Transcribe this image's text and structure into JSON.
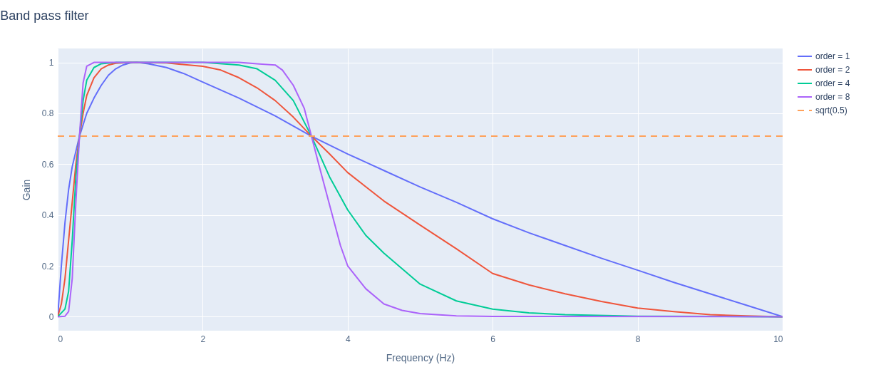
{
  "chart_data": {
    "type": "line",
    "title": "Band pass filter",
    "xlabel": "Frequency (Hz)",
    "ylabel": "Gain",
    "xlim": [
      0,
      10
    ],
    "xticks": [
      0,
      2,
      4,
      6,
      8,
      10
    ],
    "ylim": [
      -0.055,
      1.055
    ],
    "yticks": [
      0,
      0.2,
      0.4,
      0.6,
      0.8,
      1
    ],
    "grid": true,
    "legend": "top right",
    "series": [
      {
        "name": "order = 1",
        "color": "#636efa",
        "x": [
          0,
          0.05,
          0.1,
          0.15,
          0.2,
          0.3,
          0.4,
          0.5,
          0.6,
          0.7,
          0.8,
          0.9,
          1.0,
          1.1,
          1.25,
          1.5,
          1.75,
          2,
          2.5,
          3,
          3.5,
          4,
          4.5,
          5,
          5.5,
          6,
          6.5,
          7,
          7.5,
          8,
          8.5,
          9,
          9.5,
          10
        ],
        "values": [
          0,
          0.2,
          0.37,
          0.5,
          0.59,
          0.71,
          0.8,
          0.86,
          0.91,
          0.95,
          0.975,
          0.99,
          0.998,
          1.0,
          0.995,
          0.98,
          0.955,
          0.923,
          0.86,
          0.79,
          0.71,
          0.64,
          0.575,
          0.51,
          0.45,
          0.385,
          0.33,
          0.28,
          0.23,
          0.183,
          0.135,
          0.09,
          0.045,
          0
        ]
      },
      {
        "name": "order = 2",
        "color": "#ef553b",
        "x": [
          0,
          0.05,
          0.1,
          0.15,
          0.2,
          0.25,
          0.3,
          0.35,
          0.4,
          0.5,
          0.6,
          0.7,
          0.8,
          1,
          1.5,
          2,
          2.25,
          2.5,
          2.75,
          3,
          3.25,
          3.5,
          3.75,
          4,
          4.5,
          5,
          5.5,
          6,
          6.5,
          7,
          7.5,
          8,
          8.5,
          9,
          9.5,
          10
        ],
        "values": [
          0,
          0.05,
          0.15,
          0.3,
          0.45,
          0.6,
          0.71,
          0.8,
          0.87,
          0.94,
          0.975,
          0.99,
          0.997,
          1,
          0.998,
          0.985,
          0.97,
          0.94,
          0.9,
          0.85,
          0.785,
          0.71,
          0.64,
          0.567,
          0.455,
          0.36,
          0.267,
          0.17,
          0.125,
          0.09,
          0.06,
          0.034,
          0.02,
          0.008,
          0.003,
          0
        ]
      },
      {
        "name": "order = 4",
        "color": "#00cc96",
        "x": [
          0,
          0.1,
          0.15,
          0.2,
          0.25,
          0.3,
          0.35,
          0.4,
          0.5,
          0.6,
          0.8,
          2,
          2.5,
          2.75,
          3,
          3.25,
          3.5,
          3.75,
          4,
          4.25,
          4.5,
          5,
          5.5,
          6,
          6.5,
          7,
          8,
          10
        ],
        "values": [
          0,
          0.03,
          0.1,
          0.3,
          0.55,
          0.71,
          0.85,
          0.93,
          0.98,
          0.995,
          1,
          1,
          0.99,
          0.975,
          0.93,
          0.85,
          0.71,
          0.55,
          0.42,
          0.32,
          0.25,
          0.128,
          0.062,
          0.03,
          0.015,
          0.008,
          0.002,
          0
        ]
      },
      {
        "name": "order = 8",
        "color": "#ab63fa",
        "x": [
          0,
          0.1,
          0.15,
          0.2,
          0.25,
          0.3,
          0.35,
          0.4,
          0.5,
          2.5,
          2.75,
          3,
          3.1,
          3.25,
          3.4,
          3.5,
          3.6,
          3.75,
          3.9,
          4,
          4.25,
          4.5,
          4.75,
          5,
          5.5,
          6,
          10
        ],
        "values": [
          0,
          0.002,
          0.02,
          0.15,
          0.45,
          0.71,
          0.92,
          0.985,
          1,
          1,
          0.995,
          0.99,
          0.97,
          0.91,
          0.82,
          0.71,
          0.6,
          0.44,
          0.28,
          0.2,
          0.11,
          0.05,
          0.025,
          0.012,
          0.003,
          0.001,
          0
        ]
      },
      {
        "name": "sqrt(0.5)",
        "color": "#ffa15a",
        "line_style": "dashed",
        "x": [
          0,
          10
        ],
        "values": [
          0.71,
          0.71
        ]
      }
    ]
  }
}
